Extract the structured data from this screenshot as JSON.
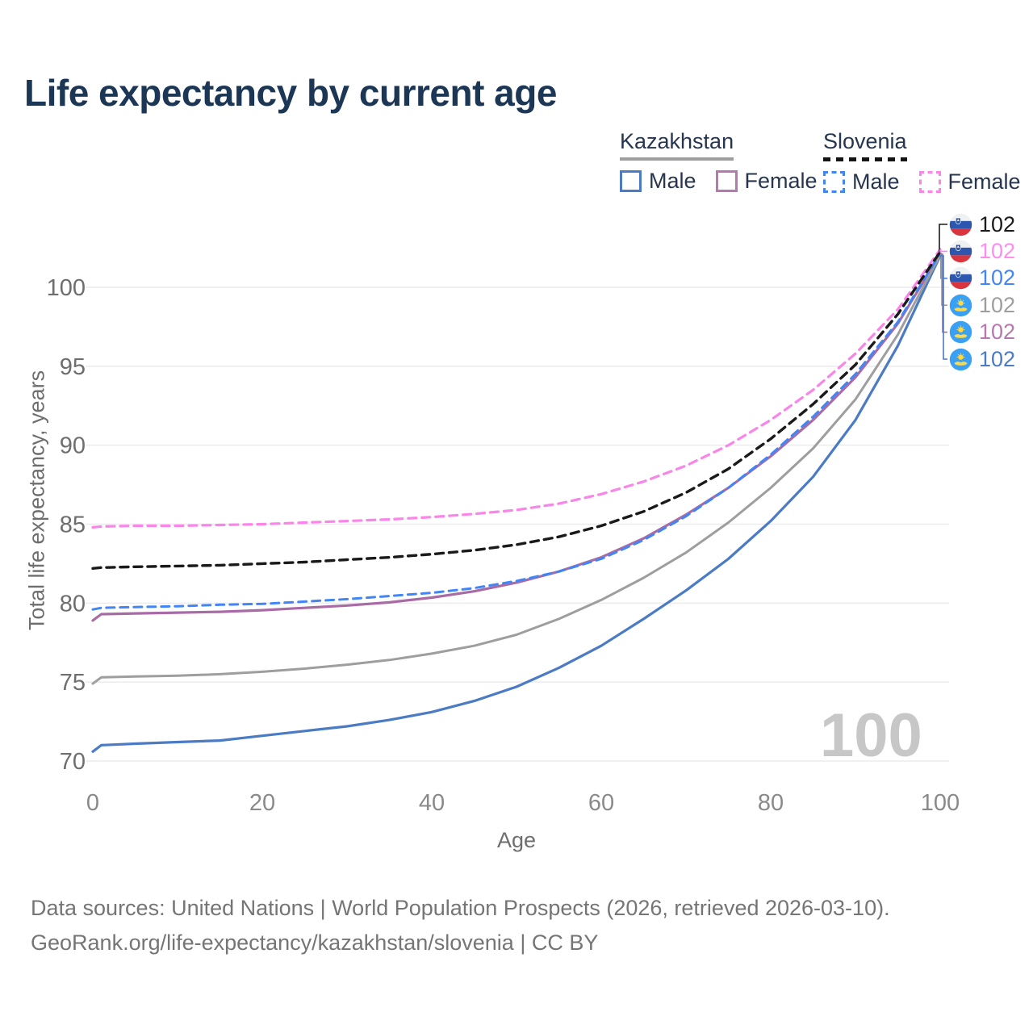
{
  "title": "Life expectancy by current age",
  "legend": {
    "groups": [
      {
        "country": "Kazakhstan",
        "line_style": "solid",
        "underline_color": "#9e9e9e",
        "items": [
          {
            "label": "Male",
            "color": "#4a7bc4",
            "dashed": false
          },
          {
            "label": "Female",
            "color": "#b678b0",
            "dashed": false
          }
        ]
      },
      {
        "country": "Slovenia",
        "line_style": "dashed",
        "underline_color": "#141414",
        "items": [
          {
            "label": "Male",
            "color": "#4285f4",
            "dashed": true
          },
          {
            "label": "Female",
            "color": "#fa85e8",
            "dashed": true
          }
        ]
      }
    ]
  },
  "axes": {
    "y_title": "Total life expectancy, years",
    "x_title": "Age"
  },
  "watermark": "100",
  "footer": {
    "line1": "Data sources: United Nations | World Population Prospects (2026, retrieved 2026-03-10).",
    "line2": "GeoRank.org/life-expectancy/kazakhstan/slovenia | CC BY"
  },
  "chart_data": {
    "type": "line",
    "title": "Life expectancy by current age",
    "xlabel": "Age",
    "ylabel": "Total life expectancy, years",
    "xlim": [
      0,
      100
    ],
    "ylim": [
      70,
      100
    ],
    "xticks": [
      0,
      20,
      40,
      60,
      80,
      100
    ],
    "yticks": [
      70,
      75,
      80,
      85,
      90,
      95,
      100
    ],
    "grid": "horizontal-only",
    "gridline_color": "#ececec",
    "legend_position": "top-right",
    "ages": [
      0,
      1,
      5,
      10,
      15,
      20,
      25,
      30,
      35,
      40,
      45,
      50,
      55,
      60,
      65,
      70,
      75,
      80,
      85,
      90,
      95,
      100
    ],
    "series": [
      {
        "name": "Kazakhstan Male",
        "country": "Kazakhstan",
        "sex": "male",
        "color": "#4a7bc4",
        "dashed": false,
        "width": 3.2,
        "values": [
          70.6,
          71.0,
          71.1,
          71.2,
          71.3,
          71.6,
          71.9,
          72.2,
          72.6,
          73.1,
          73.8,
          74.7,
          75.9,
          77.3,
          79.0,
          80.8,
          82.8,
          85.2,
          88.0,
          91.6,
          96.3,
          102.0
        ]
      },
      {
        "name": "Kazakhstan Female",
        "country": "Kazakhstan",
        "sex": "female",
        "color": "#a96ba5",
        "dashed": false,
        "width": 3.2,
        "values": [
          78.9,
          79.3,
          79.35,
          79.4,
          79.45,
          79.55,
          79.7,
          79.85,
          80.05,
          80.35,
          80.75,
          81.3,
          82.0,
          82.9,
          84.1,
          85.6,
          87.3,
          89.3,
          91.6,
          94.3,
          97.7,
          102.1
        ]
      },
      {
        "name": "Kazakhstan Total",
        "country": "Kazakhstan",
        "sex": "total",
        "color": "#9e9e9e",
        "dashed": false,
        "width": 3.0,
        "values": [
          74.9,
          75.3,
          75.35,
          75.4,
          75.5,
          75.65,
          75.85,
          76.1,
          76.4,
          76.8,
          77.3,
          78.0,
          79.0,
          80.2,
          81.6,
          83.2,
          85.1,
          87.3,
          89.8,
          92.9,
          97.0,
          102.05
        ]
      },
      {
        "name": "Slovenia Male",
        "country": "Slovenia",
        "sex": "male",
        "color": "#4285f4",
        "dashed": true,
        "width": 3.0,
        "values": [
          79.6,
          79.7,
          79.75,
          79.8,
          79.9,
          79.95,
          80.1,
          80.25,
          80.45,
          80.65,
          80.95,
          81.4,
          82.0,
          82.8,
          84.0,
          85.5,
          87.3,
          89.4,
          91.8,
          94.5,
          97.8,
          102.15
        ]
      },
      {
        "name": "Slovenia Female",
        "country": "Slovenia",
        "sex": "female",
        "color": "#fa85e8",
        "dashed": true,
        "width": 3.2,
        "values": [
          84.8,
          84.85,
          84.9,
          84.9,
          84.95,
          85.0,
          85.1,
          85.2,
          85.3,
          85.45,
          85.65,
          85.9,
          86.3,
          86.9,
          87.7,
          88.7,
          90.0,
          91.6,
          93.5,
          95.8,
          98.6,
          102.4
        ]
      },
      {
        "name": "Slovenia Total",
        "country": "Slovenia",
        "sex": "total",
        "color": "#1a1a1a",
        "dashed": true,
        "width": 3.4,
        "values": [
          82.2,
          82.25,
          82.3,
          82.35,
          82.4,
          82.5,
          82.6,
          82.75,
          82.9,
          83.1,
          83.35,
          83.7,
          84.2,
          84.9,
          85.8,
          87.0,
          88.5,
          90.4,
          92.6,
          95.1,
          98.3,
          102.25
        ]
      }
    ]
  },
  "end_labels": {
    "rows": [
      {
        "flag": "slovenia",
        "value": "102",
        "color": "#1a1a1a",
        "series": 5
      },
      {
        "flag": "slovenia",
        "value": "102",
        "color": "#ff8df0",
        "series": 4
      },
      {
        "flag": "slovenia",
        "value": "102",
        "color": "#4285f4",
        "series": 3
      },
      {
        "flag": "kazakhstan",
        "value": "102",
        "color": "#9e9e9e",
        "series": 2
      },
      {
        "flag": "kazakhstan",
        "value": "102",
        "color": "#b678b0",
        "series": 1
      },
      {
        "flag": "kazakhstan",
        "value": "102",
        "color": "#4a7bc4",
        "series": 0
      }
    ]
  }
}
